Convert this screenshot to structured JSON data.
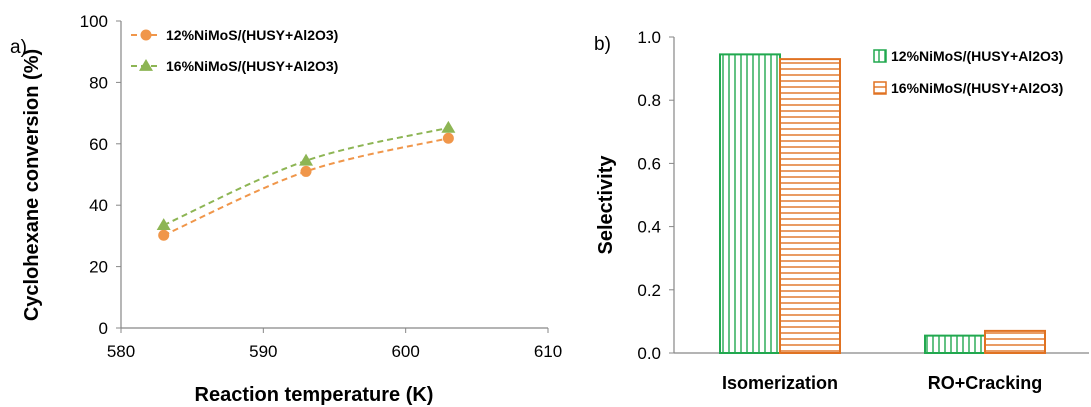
{
  "chart_data": [
    {
      "panel_label": "a)",
      "type": "line",
      "title": "",
      "xlabel": "Reaction temperature (K)",
      "ylabel": "Cyclohexane conversion (%)",
      "xlim": [
        580,
        610
      ],
      "ylim": [
        0,
        100
      ],
      "xticks": [
        "580",
        "590",
        "600",
        "610"
      ],
      "yticks": [
        "0",
        "20",
        "40",
        "60",
        "80",
        "100"
      ],
      "grid": false,
      "legend_position": "top-left",
      "series": [
        {
          "name": "12%NiMoS/(HUSY+Al2O3)",
          "marker": "circle",
          "line": "dashed",
          "color": "#F0964A",
          "x": [
            583,
            593,
            603
          ],
          "y": [
            30.2,
            51.0,
            61.8
          ]
        },
        {
          "name": "16%NiMoS/(HUSY+Al2O3)",
          "marker": "triangle",
          "line": "dashed",
          "color": "#8DB554",
          "x": [
            583,
            593,
            603
          ],
          "y": [
            33.5,
            54.5,
            65.2
          ]
        }
      ]
    },
    {
      "panel_label": "b)",
      "type": "bar",
      "title": "",
      "xlabel": "",
      "ylabel": "Selectivity",
      "categories": [
        "Isomerization",
        "RO+Cracking"
      ],
      "ylim": [
        0,
        1.0
      ],
      "yticks": [
        "0.0",
        "0.2",
        "0.4",
        "0.6",
        "0.8",
        "1.0"
      ],
      "grid": false,
      "legend_position": "top-right",
      "series": [
        {
          "name": "12%NiMoS/(HUSY+Al2O3)",
          "pattern": "vertical-hatch",
          "color": "#21A84F",
          "values": [
            0.945,
            0.055
          ]
        },
        {
          "name": "16%NiMoS/(HUSY+Al2O3)",
          "pattern": "horizontal-hatch",
          "color": "#E07222",
          "values": [
            0.93,
            0.07
          ]
        }
      ]
    }
  ]
}
